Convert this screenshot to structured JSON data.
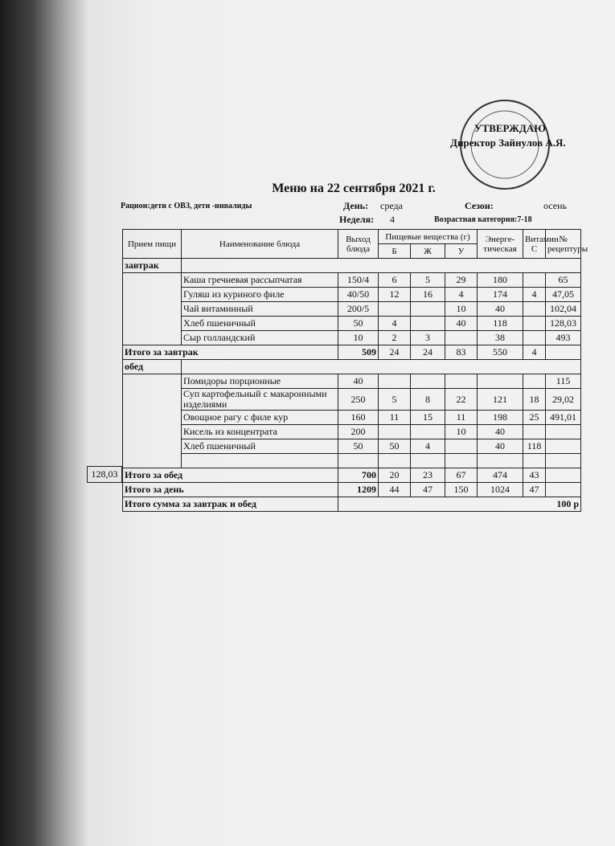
{
  "header": {
    "approval": "УТВЕРЖДАЮ",
    "director": "Директор Зайнулов А.Я."
  },
  "title": "Меню на 22 сентября 2021 г.",
  "info": {
    "ration": "Рацион:дети с ОВЗ, дети -инвалиды",
    "day_label": "День:",
    "day": "среда",
    "season_label": "Сезон:",
    "season": "осень",
    "week_label": "Неделя:",
    "week": 4,
    "age": "Возрастная категория:7-18"
  },
  "side_note": "128,03",
  "table": {
    "columns": [
      "Прием пищи",
      "Наименование блюда",
      "Выход блюда",
      "Б",
      "Ж",
      "У",
      "Энерге-тическая",
      "Витамин С",
      "№ рецептуры"
    ],
    "nutrients_header": "Пищевые вещества (г)",
    "sections": [
      {
        "name": "завтрак",
        "rows": [
          {
            "cells": [
              "Каша гречневая рассыпчатая",
              "150/4",
              6,
              5,
              29,
              180,
              null,
              65
            ]
          },
          {
            "cells": [
              "Гуляш из куриного филе",
              "40/50",
              12,
              16,
              4,
              174,
              4,
              "47,05"
            ]
          },
          {
            "cells": [
              "Чай витаминный",
              "200/5",
              null,
              null,
              10,
              40,
              null,
              "102,04"
            ]
          },
          {
            "cells": [
              "Хлеб пшеничный",
              50,
              4,
              null,
              40,
              118,
              null,
              "128,03"
            ]
          },
          {
            "cells": [
              "Сыр голландский",
              10,
              2,
              3,
              null,
              38,
              null,
              493
            ]
          }
        ],
        "total": {
          "label": "Итого за завтрак",
          "cells": [
            509,
            24,
            24,
            83,
            550,
            4
          ]
        }
      },
      {
        "name": "обед",
        "rows": [
          {
            "cells": [
              "Помидоры порционные",
              40,
              null,
              null,
              null,
              null,
              null,
              115
            ]
          },
          {
            "cells": [
              "Суп картофельный с макаронными изделиями",
              250,
              5,
              8,
              22,
              121,
              18,
              "29,02"
            ]
          },
          {
            "cells": [
              "Овощное рагу с филе кур",
              160,
              11,
              15,
              11,
              198,
              25,
              "491,01"
            ]
          },
          {
            "cells": [
              "Кисель из концентрата",
              200,
              null,
              null,
              10,
              40,
              null,
              null
            ]
          },
          {
            "cells": [
              "Хлеб пшеничный",
              50,
              50,
              4,
              null,
              40,
              118,
              null
            ]
          },
          {
            "cells": [
              null,
              null,
              null,
              null,
              null,
              null,
              null,
              null
            ]
          }
        ],
        "total": {
          "label": "Итого за обед",
          "cells": [
            700,
            20,
            23,
            67,
            474,
            43
          ]
        }
      }
    ],
    "day_total": {
      "label": "Итого за день",
      "cells": [
        1209,
        44,
        47,
        150,
        1024,
        47
      ]
    },
    "sum": {
      "label": "Итого сумма за завтрак и обед",
      "value": "100 р"
    }
  }
}
